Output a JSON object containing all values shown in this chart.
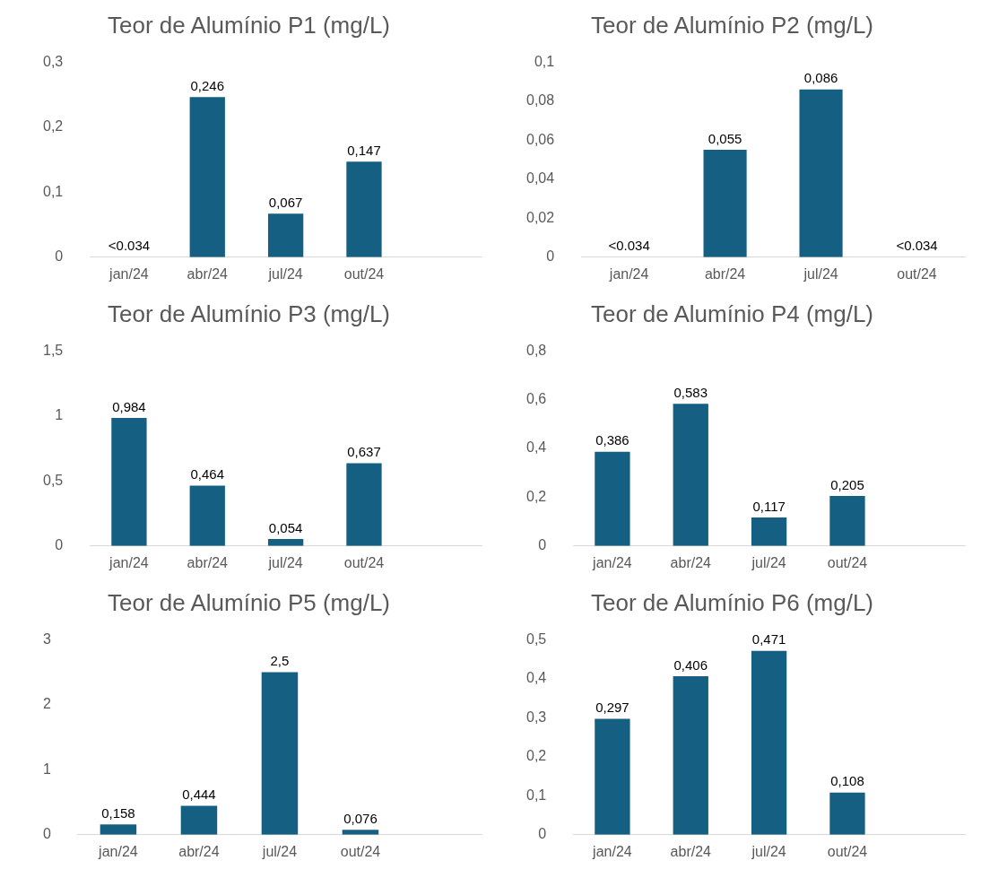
{
  "chart_data": [
    {
      "type": "bar",
      "title": "Teor de Alumínio P1 (mg/L)",
      "categories": [
        "jan/24",
        "abr/24",
        "jul/24",
        "out/24",
        null
      ],
      "values": [
        null,
        0.246,
        0.067,
        0.147,
        null
      ],
      "value_labels": [
        "<0.034",
        "0,246",
        "0,067",
        "0,147",
        null
      ],
      "color": "#156082",
      "ylim": [
        0,
        0.3
      ],
      "yticks": [
        0,
        {
          "value": 0.1,
          "label": "0,1"
        },
        {
          "value": 0.2,
          "label": "0,2"
        },
        {
          "value": 0.3,
          "label": "0,3"
        }
      ]
    },
    {
      "type": "bar",
      "title": "Teor de Alumínio P2 (mg/L)",
      "categories": [
        "jan/24",
        "abr/24",
        "jul/24",
        "out/24"
      ],
      "values": [
        null,
        0.055,
        0.086,
        null
      ],
      "value_labels": [
        "<0.034",
        "0,055",
        "0,086",
        "<0.034"
      ],
      "color": "#156082",
      "ylim": [
        0,
        0.1
      ],
      "yticks": [
        0,
        {
          "value": 0.02,
          "label": "0,02"
        },
        {
          "value": 0.04,
          "label": "0,04"
        },
        {
          "value": 0.06,
          "label": "0,06"
        },
        {
          "value": 0.08,
          "label": "0,08"
        },
        {
          "value": 0.1,
          "label": "0,1"
        }
      ]
    },
    {
      "type": "bar",
      "title": "Teor de Alumínio P3 (mg/L)",
      "categories": [
        "jan/24",
        "abr/24",
        "jul/24",
        "out/24",
        null
      ],
      "values": [
        0.984,
        0.464,
        0.054,
        0.637,
        null
      ],
      "value_labels": [
        "0,984",
        "0,464",
        "0,054",
        "0,637",
        null
      ],
      "color": "#156082",
      "ylim": [
        0,
        1.5
      ],
      "yticks": [
        0,
        {
          "value": 0.5,
          "label": "0,5"
        },
        1,
        {
          "value": 1.5,
          "label": "1,5"
        }
      ]
    },
    {
      "type": "bar",
      "title": "Teor de Alumínio P4 (mg/L)",
      "categories": [
        "jan/24",
        "abr/24",
        "jul/24",
        "out/24",
        null
      ],
      "values": [
        0.386,
        0.583,
        0.117,
        0.205,
        null
      ],
      "value_labels": [
        "0,386",
        "0,583",
        "0,117",
        "0,205",
        null
      ],
      "color": "#156082",
      "ylim": [
        0,
        0.8
      ],
      "yticks": [
        0,
        {
          "value": 0.2,
          "label": "0,2"
        },
        {
          "value": 0.4,
          "label": "0,4"
        },
        {
          "value": 0.6,
          "label": "0,6"
        },
        {
          "value": 0.8,
          "label": "0,8"
        }
      ]
    },
    {
      "type": "bar",
      "title": "Teor de Alumínio P5 (mg/L)",
      "categories": [
        "jan/24",
        "abr/24",
        "jul/24",
        "out/24",
        null
      ],
      "values": [
        0.158,
        0.444,
        2.5,
        0.076,
        null
      ],
      "value_labels": [
        "0,158",
        "0,444",
        "2,5",
        "0,076",
        null
      ],
      "color": "#156082",
      "ylim": [
        0,
        3
      ],
      "yticks": [
        0,
        1,
        2,
        3
      ]
    },
    {
      "type": "bar",
      "title": "Teor de Alumínio P6 (mg/L)",
      "categories": [
        "jan/24",
        "abr/24",
        "jul/24",
        "out/24",
        null
      ],
      "values": [
        0.297,
        0.406,
        0.471,
        0.108,
        null
      ],
      "value_labels": [
        "0,297",
        "0,406",
        "0,471",
        "0,108",
        null
      ],
      "color": "#156082",
      "ylim": [
        0,
        0.5
      ],
      "yticks": [
        0,
        {
          "value": 0.1,
          "label": "0,1"
        },
        {
          "value": 0.2,
          "label": "0,2"
        },
        {
          "value": 0.3,
          "label": "0,3"
        },
        {
          "value": 0.4,
          "label": "0,4"
        },
        {
          "value": 0.5,
          "label": "0,5"
        }
      ]
    }
  ]
}
